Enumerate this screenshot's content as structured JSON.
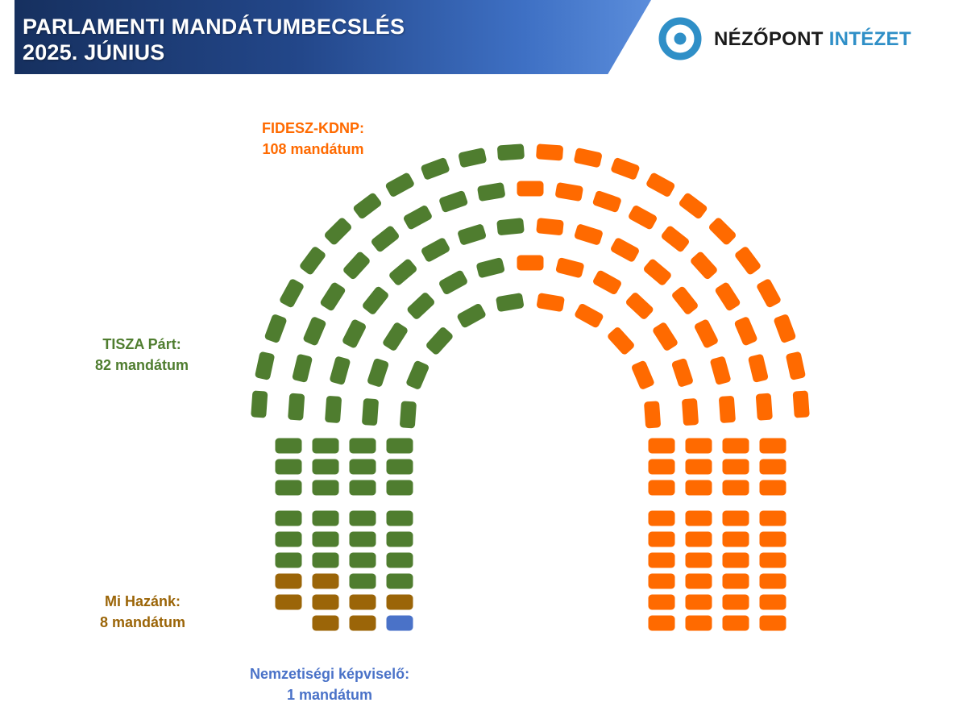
{
  "header": {
    "title_line1": "PARLAMENTI MANDÁTUMBECSLÉS",
    "title_line2": "2025. JÚNIUS"
  },
  "logo": {
    "word1": "NÉZŐPONT",
    "word2": "INTÉZET",
    "mark_color": "#2f8fc7"
  },
  "parties": {
    "fidesz": {
      "name": "FIDESZ-KDNP:",
      "seats_text": "108 mandátum",
      "seats": 108,
      "color": "#ff6a00"
    },
    "tisza": {
      "name": "TISZA Párt:",
      "seats_text": "82 mandátum",
      "seats": 82,
      "color": "#4f7d2f"
    },
    "mihazank": {
      "name": "Mi Hazánk:",
      "seats_text": "8 mandátum",
      "seats": 8,
      "color": "#9b6508"
    },
    "nemzetisegi": {
      "name": "Nemzetiségi képviselő:",
      "seats_text": "1 mandátum",
      "seats": 1,
      "color": "#4a72c8"
    }
  },
  "chart_data": {
    "type": "parliament",
    "total_seats": 199,
    "series": [
      {
        "name": "FIDESZ-KDNP",
        "values": [
          108
        ]
      },
      {
        "name": "TISZA Párt",
        "values": [
          82
        ]
      },
      {
        "name": "Mi Hazánk",
        "values": [
          8
        ]
      },
      {
        "name": "Nemzetiségi képviselő",
        "values": [
          1
        ]
      }
    ]
  }
}
